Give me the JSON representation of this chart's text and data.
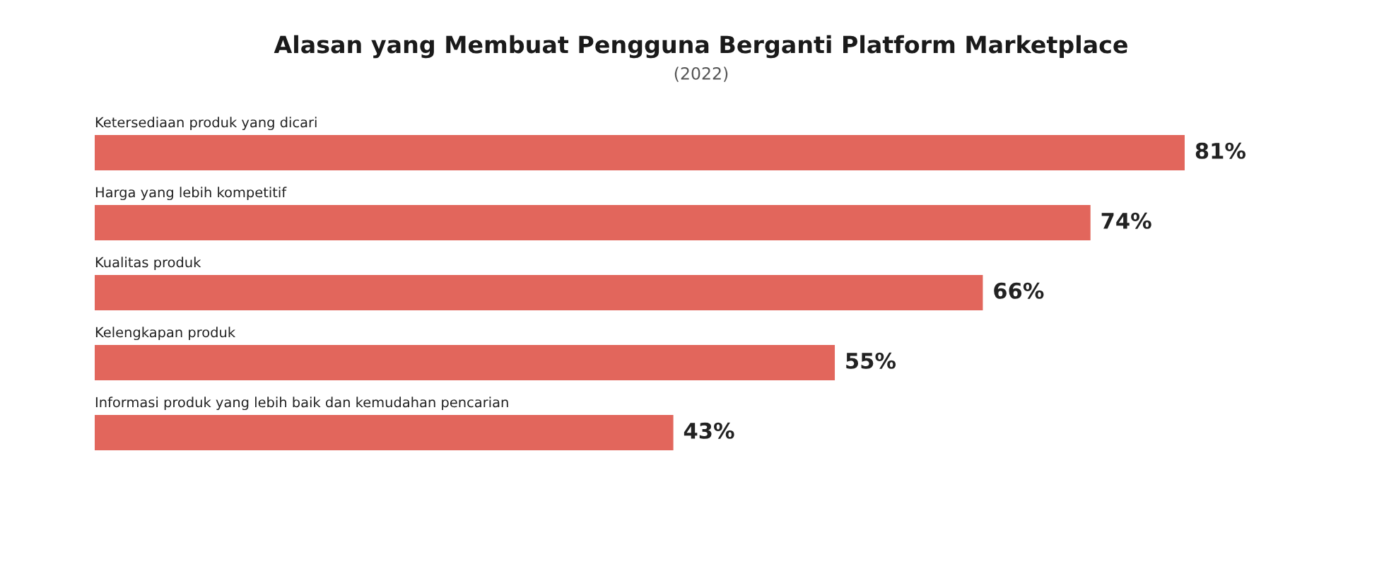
{
  "chart_data": {
    "type": "bar",
    "orientation": "horizontal",
    "title": "Alasan yang Membuat Pengguna Berganti Platform Marketplace",
    "subtitle": "(2022)",
    "categories": [
      "Ketersediaan produk yang dicari",
      "Harga yang lebih kompetitif",
      "Kualitas produk",
      "Kelengkapan produk",
      "Informasi produk yang lebih baik dan kemudahan pencarian"
    ],
    "values": [
      81,
      74,
      66,
      55,
      43
    ],
    "color": "#e2665c",
    "value_labels": [
      "81%",
      "74%",
      "66%",
      "55%",
      "43%"
    ]
  }
}
